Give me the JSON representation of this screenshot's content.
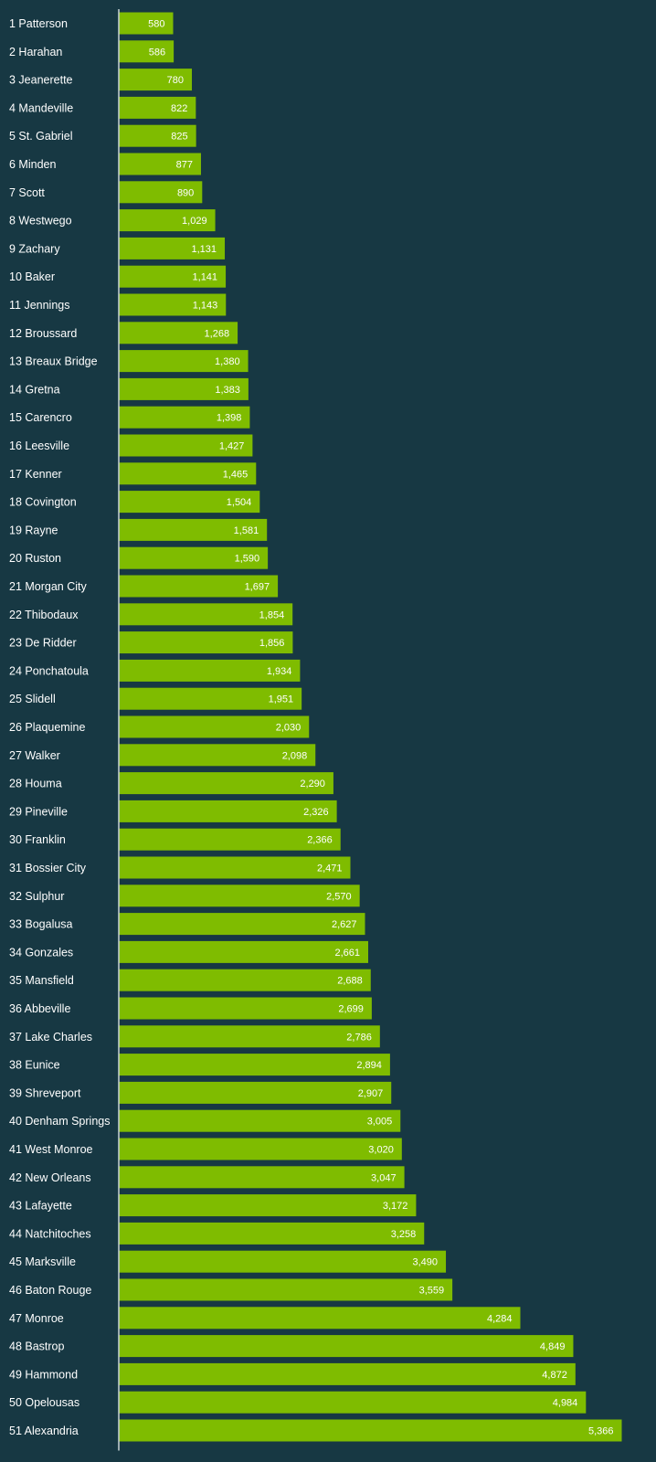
{
  "chart_data": {
    "type": "bar",
    "orientation": "horizontal",
    "categories": [
      "1 Patterson",
      "2 Harahan",
      "3 Jeanerette",
      "4 Mandeville",
      "5 St. Gabriel",
      "6 Minden",
      "7 Scott",
      "8 Westwego",
      "9 Zachary",
      "10 Baker",
      "11 Jennings",
      "12 Broussard",
      "13 Breaux Bridge",
      "14 Gretna",
      "15 Carencro",
      "16 Leesville",
      "17 Kenner",
      "18 Covington",
      "19 Rayne",
      "20 Ruston",
      "21 Morgan City",
      "22 Thibodaux",
      "23 De Ridder",
      "24 Ponchatoula",
      "25 Slidell",
      "26 Plaquemine",
      "27 Walker",
      "28 Houma",
      "29 Pineville",
      "30 Franklin",
      "31 Bossier City",
      "32 Sulphur",
      "33 Bogalusa",
      "34 Gonzales",
      "35 Mansfield",
      "36 Abbeville",
      "37 Lake Charles",
      "38 Eunice",
      "39 Shreveport",
      "40 Denham Springs",
      "41 West Monroe",
      "42 New Orleans",
      "43 Lafayette",
      "44 Natchitoches",
      "45 Marksville",
      "46 Baton Rouge",
      "47 Monroe",
      "48 Bastrop",
      "49 Hammond",
      "50 Opelousas",
      "51 Alexandria"
    ],
    "values": [
      580,
      586,
      780,
      822,
      825,
      877,
      890,
      1029,
      1131,
      1141,
      1143,
      1268,
      1380,
      1383,
      1398,
      1427,
      1465,
      1504,
      1581,
      1590,
      1697,
      1854,
      1856,
      1934,
      1951,
      2030,
      2098,
      2290,
      2326,
      2366,
      2471,
      2570,
      2627,
      2661,
      2688,
      2699,
      2786,
      2894,
      2907,
      3005,
      3020,
      3047,
      3172,
      3258,
      3490,
      3559,
      4284,
      4849,
      4872,
      4984,
      5366
    ],
    "value_labels": [
      "580",
      "586",
      "780",
      "822",
      "825",
      "877",
      "890",
      "1,029",
      "1,131",
      "1,141",
      "1,143",
      "1,268",
      "1,380",
      "1,383",
      "1,398",
      "1,427",
      "1,465",
      "1,504",
      "1,581",
      "1,590",
      "1,697",
      "1,854",
      "1,856",
      "1,934",
      "1,951",
      "2,030",
      "2,098",
      "2,290",
      "2,326",
      "2,366",
      "2,471",
      "2,570",
      "2,627",
      "2,661",
      "2,688",
      "2,699",
      "2,786",
      "2,894",
      "2,907",
      "3,005",
      "3,020",
      "3,047",
      "3,172",
      "3,258",
      "3,490",
      "3,559",
      "4,284",
      "4,849",
      "4,872",
      "4,984",
      "5,366"
    ],
    "title": "",
    "xlabel": "",
    "ylabel": "",
    "xlim": [
      0,
      5366
    ],
    "grid": false,
    "legend": "none",
    "colors": {
      "background": "#173843",
      "bar": "#7fbc00",
      "axis": "#c9d2d5",
      "text": "#ffffff"
    }
  }
}
